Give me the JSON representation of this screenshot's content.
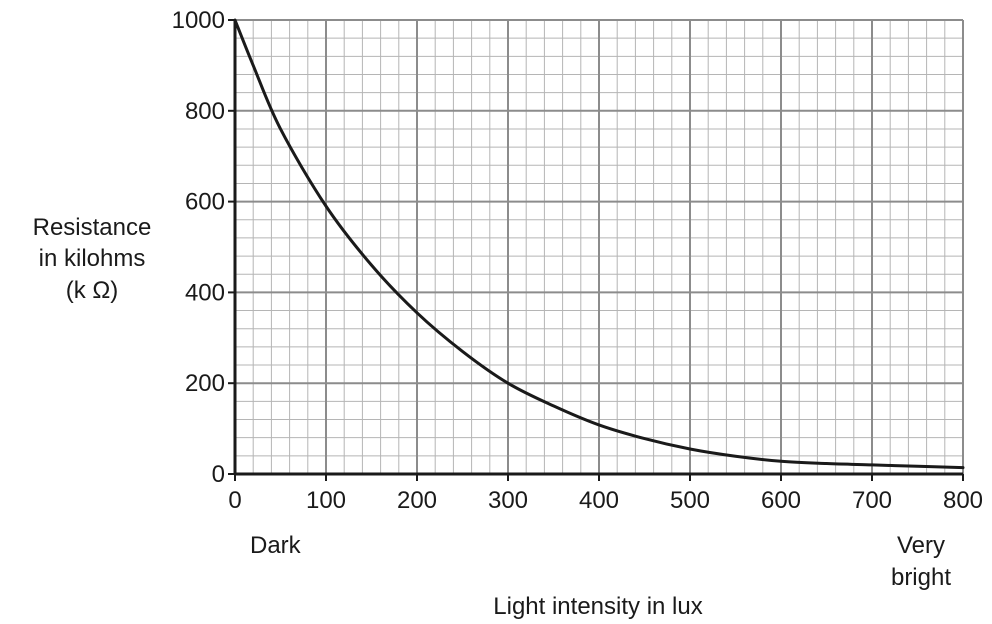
{
  "chart_data": {
    "type": "line",
    "title": "",
    "xlabel": "Light intensity in lux",
    "ylabel_lines": [
      "Resistance",
      "in kilohms",
      "(k Ω)"
    ],
    "xlim": [
      0,
      800
    ],
    "ylim": [
      0,
      1000
    ],
    "x_ticks": [
      0,
      100,
      200,
      300,
      400,
      500,
      600,
      700,
      800
    ],
    "y_ticks": [
      0,
      200,
      400,
      600,
      800,
      1000
    ],
    "x_minor_step": 20,
    "y_minor_step": 40,
    "grid": true,
    "annotations": {
      "dark": "Dark",
      "very_bright_lines": [
        "Very",
        "bright"
      ]
    },
    "series": [
      {
        "x": [
          0,
          20,
          50,
          100,
          150,
          200,
          250,
          300,
          350,
          400,
          450,
          500,
          550,
          600,
          650,
          700,
          750,
          800
        ],
        "y": [
          1000,
          900,
          760,
          590,
          460,
          355,
          270,
          200,
          150,
          108,
          78,
          55,
          39,
          28,
          23,
          20,
          17,
          14
        ]
      }
    ],
    "colors": {
      "line": "#1a1a1a",
      "axis": "#1a1a1a",
      "grid_major": "#8c8c8c",
      "grid_minor": "#b5b5b5"
    }
  }
}
